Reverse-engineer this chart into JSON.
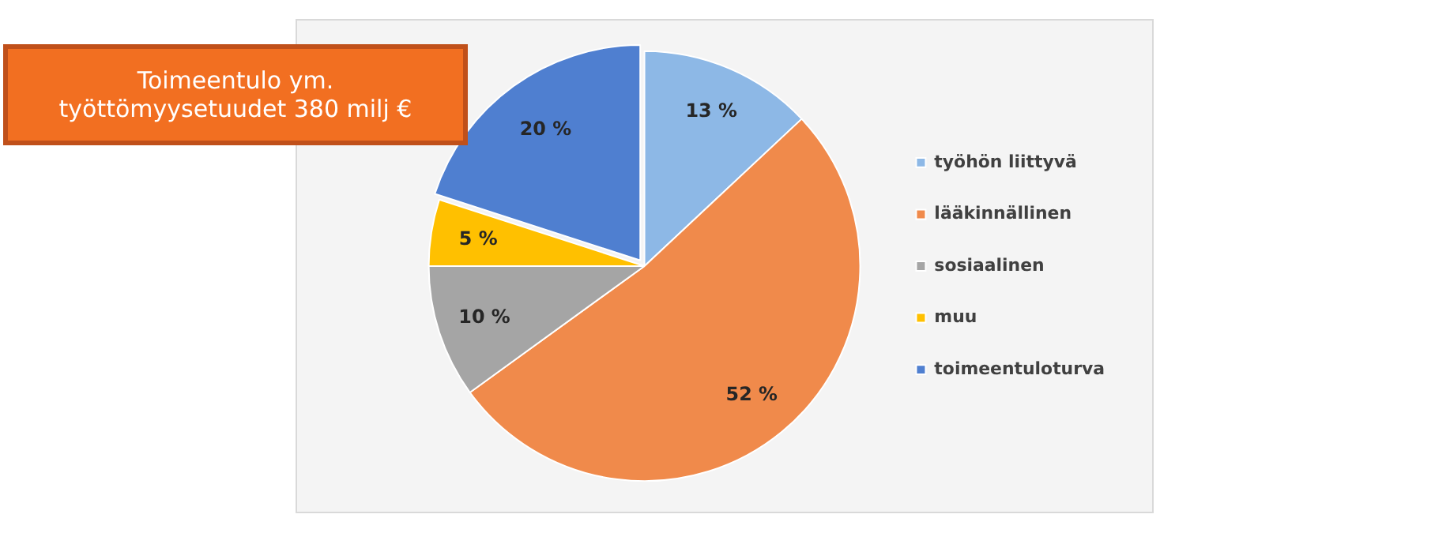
{
  "chart_data": {
    "type": "pie",
    "categories": [
      "työhön liittyvä",
      "lääkinnällinen",
      "sosiaalinen",
      "muu",
      "toimeentuloturva"
    ],
    "values": [
      13,
      52,
      10,
      5,
      20
    ],
    "colors": [
      "#8db8e6",
      "#f08a4b",
      "#a5a5a5",
      "#ffc000",
      "#4f7fd0"
    ],
    "value_labels": [
      "13 %",
      "52 %",
      "10 %",
      "5 %",
      "20 %"
    ],
    "legend": "right",
    "annotations": [
      "Toimeentulo ym. työttömyysetuudet 380 milj €"
    ]
  }
}
